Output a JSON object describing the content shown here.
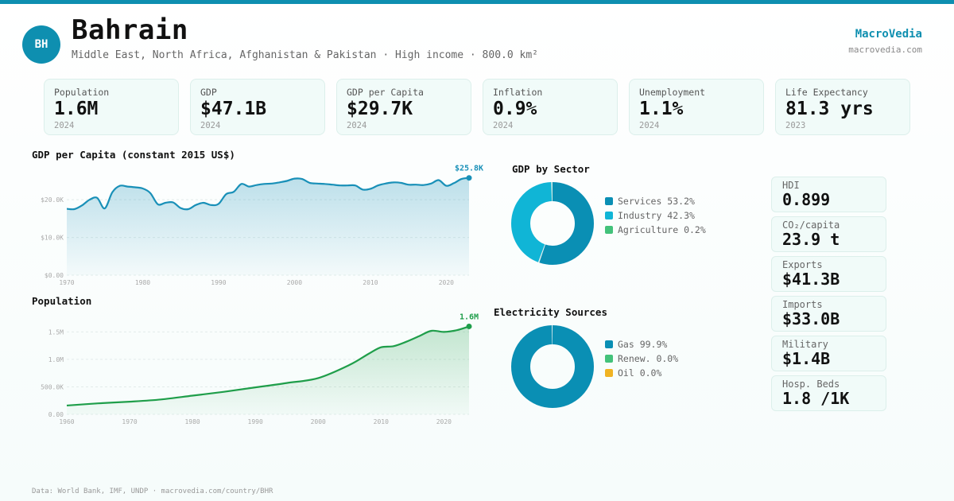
{
  "header": {
    "initials": "BH",
    "title": "Bahrain",
    "subtitle": "Middle East, North Africa, Afghanistan & Pakistan · High income · 800.0 km²",
    "brand": "MacroVedia",
    "brand_url": "macrovedia.com"
  },
  "kpis": [
    {
      "label": "Population",
      "value": "1.6M",
      "year": "2024"
    },
    {
      "label": "GDP",
      "value": "$47.1B",
      "year": "2024"
    },
    {
      "label": "GDP per Capita",
      "value": "$29.7K",
      "year": "2024"
    },
    {
      "label": "Inflation",
      "value": "0.9%",
      "year": "2024"
    },
    {
      "label": "Unemployment",
      "value": "1.1%",
      "year": "2024"
    },
    {
      "label": "Life Expectancy",
      "value": "81.3 yrs",
      "year": "2023"
    }
  ],
  "stats": [
    {
      "label": "HDI",
      "value": "0.899"
    },
    {
      "label": "CO₂/capita",
      "value": "23.9 t"
    },
    {
      "label": "Exports",
      "value": "$41.3B"
    },
    {
      "label": "Imports",
      "value": "$33.0B"
    },
    {
      "label": "Military",
      "value": "$1.4B"
    },
    {
      "label": "Hosp. Beds",
      "value": "1.8 /1K"
    }
  ],
  "colors": {
    "accent": "#0e8fb0",
    "gdp_line": "#1990b8",
    "pop_line": "#1f9e4a",
    "services": "#0a8fb4",
    "industry": "#10b5d6",
    "agriculture": "#43c27a",
    "gas": "#0a8fb4",
    "renew": "#43c27a",
    "oil": "#f0b323"
  },
  "footer": "Data: World Bank, IMF, UNDP · macrovedia.com/country/BHR",
  "chart_data": [
    {
      "type": "area",
      "title": "GDP per Capita (constant 2015 US$)",
      "end_label": "$25.8K",
      "ylim": [
        0,
        27000
      ],
      "yticks": [
        0,
        10000,
        20000
      ],
      "ytick_labels": [
        "$0.00",
        "$10.0K",
        "$20.0K"
      ],
      "xlim": [
        1970,
        2023
      ],
      "xticks": [
        1970,
        1980,
        1990,
        2000,
        2010,
        2020
      ],
      "x": [
        1970,
        1971,
        1972,
        1973,
        1974,
        1975,
        1976,
        1977,
        1978,
        1979,
        1980,
        1981,
        1982,
        1983,
        1984,
        1985,
        1986,
        1987,
        1988,
        1989,
        1990,
        1991,
        1992,
        1993,
        1994,
        1995,
        1996,
        1997,
        1998,
        1999,
        2000,
        2001,
        2002,
        2003,
        2004,
        2005,
        2006,
        2007,
        2008,
        2009,
        2010,
        2011,
        2012,
        2013,
        2014,
        2015,
        2016,
        2017,
        2018,
        2019,
        2020,
        2021,
        2022,
        2023
      ],
      "values": [
        17600,
        17500,
        18500,
        20000,
        20500,
        17700,
        22000,
        23700,
        23500,
        23300,
        23000,
        21800,
        18800,
        19200,
        19300,
        17800,
        17500,
        18600,
        19200,
        18600,
        18900,
        21500,
        22100,
        24200,
        23500,
        23900,
        24200,
        24300,
        24600,
        25000,
        25600,
        25500,
        24500,
        24300,
        24200,
        24000,
        23800,
        23800,
        23800,
        22700,
        22900,
        23800,
        24300,
        24600,
        24500,
        24000,
        24000,
        23900,
        24300,
        25200,
        23700,
        24400,
        25500,
        25800
      ]
    },
    {
      "type": "area",
      "title": "Population",
      "end_label": "1.6M",
      "ylim": [
        0,
        1650000
      ],
      "yticks": [
        0,
        500000,
        1000000,
        1500000
      ],
      "ytick_labels": [
        "0.00",
        "500.0K",
        "1.0M",
        "1.5M"
      ],
      "xlim": [
        1960,
        2024
      ],
      "xticks": [
        1960,
        1970,
        1980,
        1990,
        2000,
        2010,
        2020
      ],
      "x": [
        1960,
        1965,
        1970,
        1975,
        1980,
        1985,
        1990,
        1995,
        2000,
        2005,
        2008,
        2010,
        2012,
        2014,
        2016,
        2018,
        2020,
        2022,
        2024
      ],
      "values": [
        160000,
        200000,
        230000,
        270000,
        340000,
        410000,
        490000,
        570000,
        660000,
        900000,
        1100000,
        1220000,
        1240000,
        1320000,
        1420000,
        1520000,
        1500000,
        1530000,
        1600000
      ]
    },
    {
      "type": "pie",
      "title": "GDP by Sector",
      "categories": [
        "Services",
        "Industry",
        "Agriculture"
      ],
      "values": [
        53.2,
        42.3,
        0.2
      ],
      "labels": [
        "Services 53.2%",
        "Industry 42.3%",
        "Agriculture 0.2%"
      ]
    },
    {
      "type": "pie",
      "title": "Electricity Sources",
      "categories": [
        "Gas",
        "Renew.",
        "Oil"
      ],
      "values": [
        99.9,
        0.0,
        0.0
      ],
      "labels": [
        "Gas 99.9%",
        "Renew. 0.0%",
        "Oil 0.0%"
      ]
    }
  ]
}
